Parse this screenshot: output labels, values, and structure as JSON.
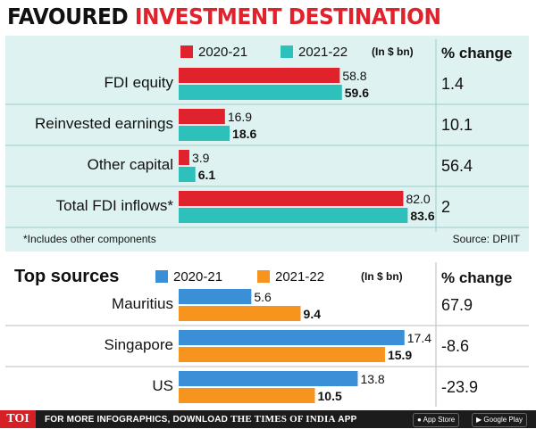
{
  "title": {
    "part1": "FAVOURED",
    "part2": "INVESTMENT DESTINATION"
  },
  "chart_data": [
    {
      "type": "bar",
      "title": "",
      "unit_note": "(In $ bn)",
      "categories": [
        "FDI equity",
        "Reinvested earnings",
        "Other capital",
        "Total FDI inflows*"
      ],
      "series": [
        {
          "name": "2020-21",
          "values": [
            58.8,
            16.9,
            3.9,
            82.0
          ],
          "value_labels": [
            "58.8",
            "16.9",
            "3.9",
            "82.0"
          ],
          "color": "#e0222d"
        },
        {
          "name": "2021-22",
          "values": [
            59.6,
            18.6,
            6.1,
            83.6
          ],
          "value_labels": [
            "59.6",
            "18.6",
            "6.1",
            "83.6"
          ],
          "color": "#2ec0bb"
        }
      ],
      "pct_change_header": "% change",
      "pct_change": [
        "1.4",
        "10.1",
        "56.4",
        "2"
      ],
      "footnote": "*Includes other components",
      "source": "Source: DPIIT",
      "xlim": [
        0,
        90
      ]
    },
    {
      "type": "bar",
      "title": "Top sources",
      "unit_note": "(In $ bn)",
      "categories": [
        "Mauritius",
        "Singapore",
        "US"
      ],
      "series": [
        {
          "name": "2020-21",
          "values": [
            5.6,
            17.4,
            13.8
          ],
          "value_labels": [
            "5.6",
            "17.4",
            "13.8"
          ],
          "color": "#3a8fd6"
        },
        {
          "name": "2021-22",
          "values": [
            9.4,
            15.9,
            10.5
          ],
          "value_labels": [
            "9.4",
            "15.9",
            "10.5"
          ],
          "color": "#f7941d"
        }
      ],
      "pct_change_header": "% change",
      "pct_change": [
        "67.9",
        "-8.6",
        "-23.9"
      ],
      "xlim": [
        0,
        19
      ]
    }
  ],
  "footer": {
    "logo": "TOI",
    "message": "FOR MORE INFOGRAPHICS, DOWNLOAD",
    "brand": "THE TIMES OF INDIA",
    "suffix": "APP",
    "app_store": "App Store",
    "google_play": "Google Play"
  }
}
